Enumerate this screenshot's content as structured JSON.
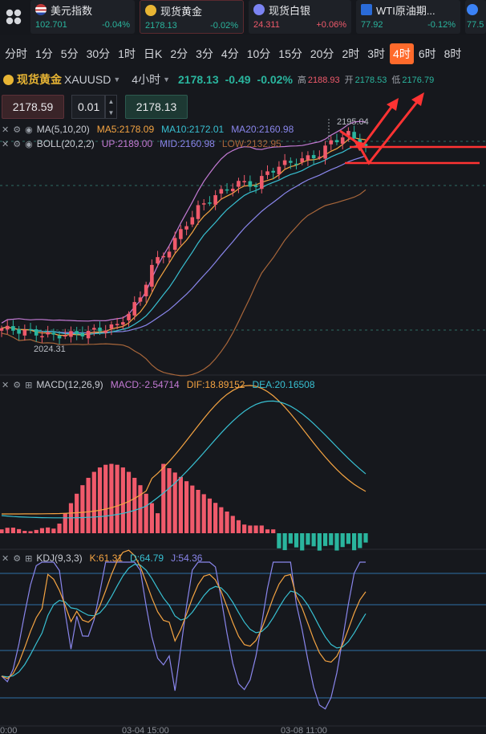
{
  "tickers": [
    {
      "name": "美元指数",
      "price": "102.701",
      "change": "-0.04%",
      "dir": "down",
      "icon_color": "#c23a3a"
    },
    {
      "name": "现货黄金",
      "price": "2178.13",
      "change": "-0.02%",
      "dir": "down",
      "icon_color": "#e8b534"
    },
    {
      "name": "现货白银",
      "price": "24.311",
      "change": "+0.06%",
      "dir": "up",
      "icon_color": "#7b83f2"
    },
    {
      "name": "WTI原油期...",
      "price": "77.92",
      "change": "-0.12%",
      "dir": "down",
      "icon_color": "#2a6bd8"
    },
    {
      "name": "",
      "price": "77.5",
      "change": "",
      "dir": "down",
      "icon_color": "#3b82f6"
    }
  ],
  "timeframes": [
    "分时",
    "1分",
    "5分",
    "30分",
    "1时",
    "日K",
    "2分",
    "3分",
    "4分",
    "10分",
    "15分",
    "20分",
    "2时",
    "3时",
    "4时",
    "6时",
    "8时"
  ],
  "active_timeframe": "4时",
  "instrument": {
    "name": "现货黄金",
    "code": "XAUUSD",
    "timeframe": "4小时",
    "price": "2178.13",
    "change": "-0.49",
    "change_pct": "-0.02%",
    "high_label": "高",
    "high": "2188.93",
    "open_label": "开",
    "open": "2178.53",
    "low_label": "低",
    "low": "2176.79"
  },
  "order": {
    "sell_price": "2178.59",
    "quantity": "0.01",
    "buy_price": "2178.13"
  },
  "indicators": {
    "ma": {
      "name": "MA(5,10,20)",
      "ma5": "MA5:2178.09",
      "ma10": "MA10:2172.01",
      "ma20": "MA20:2160.98"
    },
    "boll": {
      "name": "BOLL(20,2,2)",
      "up": "UP:2189.00",
      "mid": "MID:2160.98",
      "low": "LOW:2132.95"
    },
    "macd": {
      "name": "MACD(12,26,9)",
      "macd": "MACD:-2.54714",
      "dif": "DIF:18.89152",
      "dea": "DEA:20.16508"
    },
    "kdj": {
      "name": "KDJ(9,3,3)",
      "k": "K:61.31",
      "d": "D:64.79",
      "j": "J:54.36"
    }
  },
  "price_annotations": {
    "high_mark": "2195.04",
    "low_mark": "2024.31"
  },
  "time_axis": [
    "0:00",
    "03-04 15:00",
    "03-08 11:00"
  ],
  "colors": {
    "bull": "#f05a6b",
    "bear": "#2ab59e",
    "ma5": "#f5a442",
    "ma10": "#38c0d2",
    "ma20": "#8a86ec",
    "boll_up": "#c37ad4",
    "boll_low": "#a8663a",
    "dif": "#f5a442",
    "dea": "#38c0d2",
    "kdj_k": "#f5a442",
    "kdj_d": "#38c0d2",
    "kdj_j": "#8a86ec",
    "annotation": "#ff3333"
  }
}
